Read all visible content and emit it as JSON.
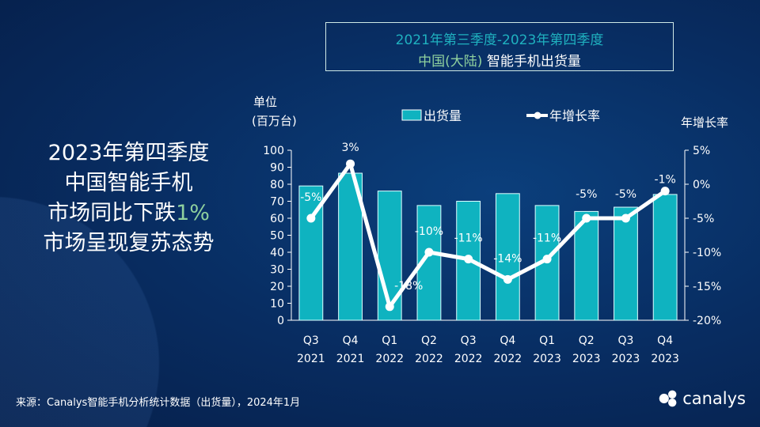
{
  "title": {
    "line1": "2021年第三季度-2023年第四季度",
    "line2_green": "中国(大陆)",
    "line2_white": " 智能手机出货量"
  },
  "headline": {
    "line1": "2023年第四季度",
    "line2": "中国智能手机",
    "line3_pre": "市场同比下跌",
    "line3_green": "1%",
    "line4": "市场呈现复苏态势"
  },
  "footer": "来源：Canalys智能手机分析统计数据（出货量），2024年1月",
  "logo": {
    "text": "canalys",
    "icon": "canalys-logo-icon"
  },
  "colors": {
    "bar": "#0fb3c0",
    "line": "#ffffff",
    "accent_green": "#8fd19e",
    "title_teal": "#1fb1bf"
  },
  "chart_data": {
    "type": "bar+line",
    "categories": [
      [
        "Q3",
        "2021"
      ],
      [
        "Q4",
        "2021"
      ],
      [
        "Q1",
        "2022"
      ],
      [
        "Q2",
        "2022"
      ],
      [
        "Q3",
        "2022"
      ],
      [
        "Q4",
        "2022"
      ],
      [
        "Q1",
        "2023"
      ],
      [
        "Q2",
        "2023"
      ],
      [
        "Q3",
        "2023"
      ],
      [
        "Q4",
        "2023"
      ]
    ],
    "ylabel_left": [
      "单位",
      "(百万台)"
    ],
    "ylabel_right": "年增长率",
    "ylim_left": [
      0,
      100
    ],
    "yticks_left": [
      "0",
      "10",
      "20",
      "30",
      "40",
      "50",
      "60",
      "70",
      "80",
      "90",
      "100"
    ],
    "ylim_right": [
      -20,
      5
    ],
    "yticks_right": [
      "5%",
      "0%",
      "-5%",
      "-10%",
      "-15%",
      "-20%"
    ],
    "series": [
      {
        "name": "出货量",
        "type": "bar",
        "values": [
          79,
          86.5,
          76,
          67.5,
          70,
          74.5,
          67.5,
          64,
          66.5,
          74
        ]
      },
      {
        "name": "年增长率",
        "type": "line",
        "values": [
          -5,
          3,
          -18,
          -10,
          -11,
          -14,
          -11,
          -5,
          -5,
          -1
        ],
        "labels": [
          "-5%",
          "3%",
          "-18%",
          "-10%",
          "-11%",
          "-14%",
          "-11%",
          "-5%",
          "-5%",
          "-1%"
        ]
      }
    ],
    "legend": "top"
  }
}
